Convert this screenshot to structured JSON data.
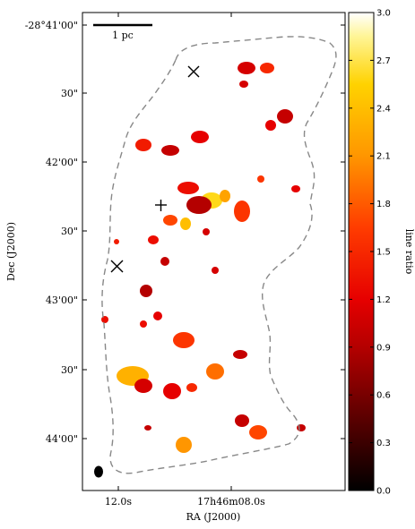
{
  "chart_data": {
    "type": "heatmap",
    "title": "",
    "xlabel": "RA (J2000)",
    "ylabel": "Dec (J2000)",
    "x_ticks": [
      "12.0s",
      "17h46m08.0s"
    ],
    "y_ticks": [
      "-28°41'00\"",
      "30\"",
      "42'00\"",
      "30\"",
      "43'00\"",
      "30\"",
      "44'00\""
    ],
    "scale_bar_label": "1 pc",
    "colorbar": {
      "label": "line ratio",
      "range": [
        0.0,
        3.0
      ],
      "colormap": "hot",
      "ticks": [
        "0.0",
        "0.3",
        "0.6",
        "0.9",
        "1.2",
        "1.5",
        "1.8",
        "2.1",
        "2.4",
        "2.7",
        "3.0"
      ]
    },
    "markers": [
      {
        "kind": "x-cross",
        "label": ""
      },
      {
        "kind": "plus",
        "label": ""
      },
      {
        "kind": "x-cross",
        "label": ""
      }
    ],
    "beam": {
      "shape": "ellipse",
      "color": "#000000"
    },
    "contour": {
      "style": "dashed",
      "color": "#888888"
    },
    "clumps": [
      {
        "ratio": 1.3
      },
      {
        "ratio": 1.4
      },
      {
        "ratio": 1.0
      },
      {
        "ratio": 1.2
      },
      {
        "ratio": 2.6
      },
      {
        "ratio": 1.1
      },
      {
        "ratio": 1.5
      },
      {
        "ratio": 1.0
      },
      {
        "ratio": 1.2
      },
      {
        "ratio": 0.9
      },
      {
        "ratio": 1.6
      },
      {
        "ratio": 2.2
      },
      {
        "ratio": 1.7
      },
      {
        "ratio": 2.4
      },
      {
        "ratio": 1.3
      },
      {
        "ratio": 1.0
      },
      {
        "ratio": 1.1
      },
      {
        "ratio": 0.9
      },
      {
        "ratio": 1.2
      },
      {
        "ratio": 1.6
      },
      {
        "ratio": 1.3
      },
      {
        "ratio": 1.0
      },
      {
        "ratio": 2.3
      },
      {
        "ratio": 1.1
      },
      {
        "ratio": 1.2
      },
      {
        "ratio": 1.9
      },
      {
        "ratio": 1.5
      },
      {
        "ratio": 1.7
      },
      {
        "ratio": 1.0
      },
      {
        "ratio": 2.1
      },
      {
        "ratio": 1.3
      },
      {
        "ratio": 1.4
      },
      {
        "ratio": 1.1
      },
      {
        "ratio": 1.6
      },
      {
        "ratio": 1.2
      },
      {
        "ratio": 1.0
      },
      {
        "ratio": 1.1
      },
      {
        "ratio": 1.0
      }
    ]
  }
}
